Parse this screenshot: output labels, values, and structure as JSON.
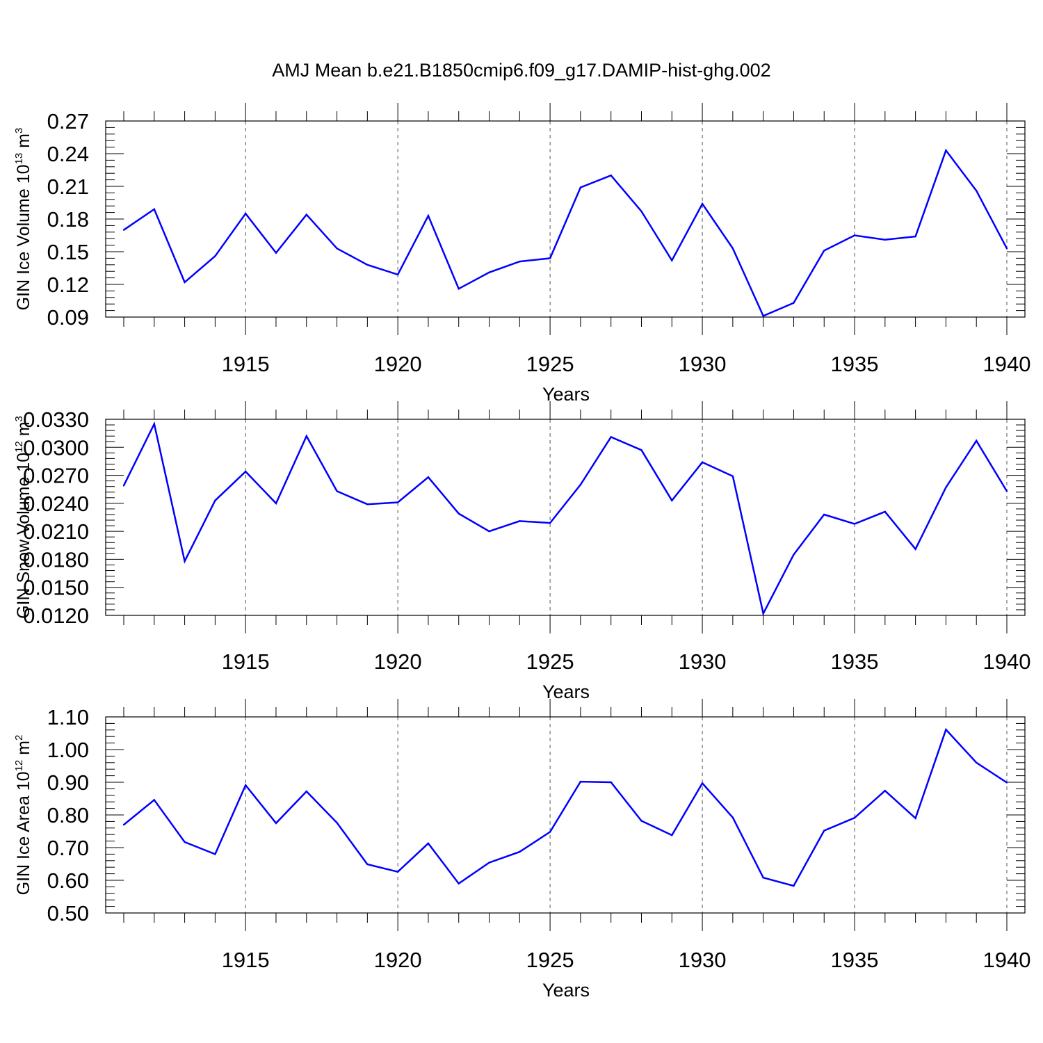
{
  "title": "AMJ Mean b.e21.B1850cmip6.f09_g17.DAMIP-hist-ghg.002",
  "colors": {
    "line": "#0000ff",
    "axis": "#000000",
    "grid": "#555555"
  },
  "chart_data": [
    {
      "type": "line",
      "ylabel": {
        "text": "GIN Ice Volume 10",
        "exp1": "13",
        "mid": " m",
        "exp2": "3"
      },
      "xlabel": "Years",
      "xlim": [
        1911,
        1940
      ],
      "ylim": [
        0.09,
        0.27
      ],
      "yticks": [
        "0.09",
        "0.12",
        "0.15",
        "0.18",
        "0.21",
        "0.24",
        "0.27"
      ],
      "xticks": [
        "1915",
        "1920",
        "1925",
        "1930",
        "1935",
        "1940"
      ],
      "x": [
        1911,
        1912,
        1913,
        1914,
        1915,
        1916,
        1917,
        1918,
        1919,
        1920,
        1921,
        1922,
        1923,
        1924,
        1925,
        1926,
        1927,
        1928,
        1929,
        1930,
        1931,
        1932,
        1933,
        1934,
        1935,
        1936,
        1937,
        1938,
        1939,
        1940
      ],
      "series": [
        {
          "values": [
            0.17,
            0.189,
            0.122,
            0.146,
            0.185,
            0.149,
            0.184,
            0.153,
            0.138,
            0.129,
            0.183,
            0.116,
            0.131,
            0.141,
            0.144,
            0.209,
            0.22,
            0.187,
            0.142,
            0.194,
            0.153,
            0.091,
            0.103,
            0.151,
            0.165,
            0.161,
            0.164,
            0.243,
            0.206,
            0.153
          ]
        }
      ],
      "grid": "vertical dashed at major x ticks"
    },
    {
      "type": "line",
      "ylabel": {
        "text": "GIN Snow Volume 10",
        "exp1": "12",
        "mid": " m",
        "exp2": "3"
      },
      "xlabel": "Years",
      "xlim": [
        1911,
        1940
      ],
      "ylim": [
        0.012,
        0.033
      ],
      "yticks": [
        "0.0120",
        "0.0150",
        "0.0180",
        "0.0210",
        "0.0240",
        "0.0270",
        "0.0300",
        "0.0330"
      ],
      "xticks": [
        "1915",
        "1920",
        "1925",
        "1930",
        "1935",
        "1940"
      ],
      "x": [
        1911,
        1912,
        1913,
        1914,
        1915,
        1916,
        1917,
        1918,
        1919,
        1920,
        1921,
        1922,
        1923,
        1924,
        1925,
        1926,
        1927,
        1928,
        1929,
        1930,
        1931,
        1932,
        1933,
        1934,
        1935,
        1936,
        1937,
        1938,
        1939,
        1940
      ],
      "series": [
        {
          "values": [
            0.0259,
            0.0325,
            0.0178,
            0.0243,
            0.0274,
            0.024,
            0.0312,
            0.0253,
            0.0239,
            0.0241,
            0.0268,
            0.0229,
            0.021,
            0.0221,
            0.0219,
            0.026,
            0.0311,
            0.0297,
            0.0243,
            0.0284,
            0.0269,
            0.0122,
            0.0185,
            0.0228,
            0.0218,
            0.0231,
            0.0191,
            0.0257,
            0.0307,
            0.0253
          ]
        }
      ],
      "grid": "vertical dashed at major x ticks"
    },
    {
      "type": "line",
      "ylabel": {
        "text": "GIN Ice Area 10",
        "exp1": "12",
        "mid": " m",
        "exp2": "2"
      },
      "xlabel": "Years",
      "xlim": [
        1911,
        1940
      ],
      "ylim": [
        0.5,
        1.1
      ],
      "yticks": [
        "0.50",
        "0.60",
        "0.70",
        "0.80",
        "0.90",
        "1.00",
        "1.10"
      ],
      "xticks": [
        "1915",
        "1920",
        "1925",
        "1930",
        "1935",
        "1940"
      ],
      "x": [
        1911,
        1912,
        1913,
        1914,
        1915,
        1916,
        1917,
        1918,
        1919,
        1920,
        1921,
        1922,
        1923,
        1924,
        1925,
        1926,
        1927,
        1928,
        1929,
        1930,
        1931,
        1932,
        1933,
        1934,
        1935,
        1936,
        1937,
        1938,
        1939,
        1940
      ],
      "series": [
        {
          "values": [
            0.77,
            0.846,
            0.717,
            0.68,
            0.891,
            0.775,
            0.872,
            0.776,
            0.649,
            0.626,
            0.713,
            0.59,
            0.654,
            0.687,
            0.748,
            0.902,
            0.9,
            0.782,
            0.738,
            0.897,
            0.792,
            0.608,
            0.583,
            0.752,
            0.791,
            0.874,
            0.79,
            1.061,
            0.96,
            0.899
          ]
        }
      ],
      "grid": "vertical dashed at major x ticks"
    }
  ]
}
